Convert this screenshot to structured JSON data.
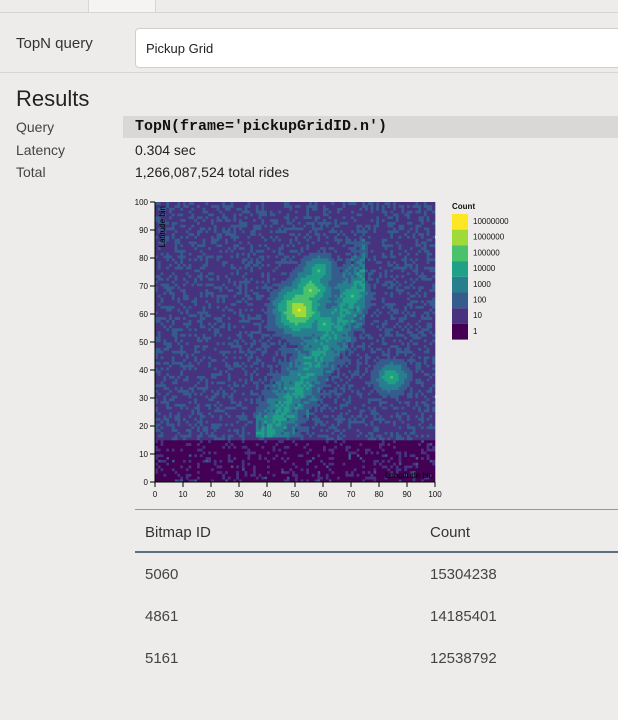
{
  "query_row": {
    "label": "TopN query",
    "value": "Pickup Grid"
  },
  "results": {
    "title": "Results",
    "query_label": "Query",
    "query_code": "TopN(frame='pickupGridID.n')",
    "latency_label": "Latency",
    "latency_value": "0.304 sec",
    "total_label": "Total",
    "total_value": "1,266,087,524 total rides"
  },
  "chart_data": {
    "type": "heatmap",
    "title": "",
    "xlabel": "Longitude bin",
    "ylabel": "Latitude bin",
    "xlim": [
      0,
      100
    ],
    "ylim": [
      0,
      100
    ],
    "x_ticks": [
      "0",
      "10",
      "20",
      "30",
      "40",
      "50",
      "60",
      "70",
      "80",
      "90",
      "100"
    ],
    "y_ticks": [
      "0",
      "10",
      "20",
      "30",
      "40",
      "50",
      "60",
      "70",
      "80",
      "90",
      "100"
    ],
    "legend_title": "Count",
    "legend_position": "right",
    "legend": [
      {
        "label": "10000000",
        "color": "#fde725"
      },
      {
        "label": "1000000",
        "color": "#a0da39"
      },
      {
        "label": "100000",
        "color": "#4ac16d"
      },
      {
        "label": "10000",
        "color": "#1fa187"
      },
      {
        "label": "1000",
        "color": "#277f8e"
      },
      {
        "label": "100",
        "color": "#365c8d"
      },
      {
        "label": "10",
        "color": "#46327e"
      },
      {
        "label": "1",
        "color": "#440154"
      }
    ],
    "hotspots": [
      {
        "x": 51,
        "y": 61,
        "count": 10000000
      },
      {
        "x": 55,
        "y": 68,
        "count": 1000000
      },
      {
        "x": 58,
        "y": 75,
        "count": 100000
      },
      {
        "x": 60,
        "y": 56,
        "count": 100000
      },
      {
        "x": 84,
        "y": 37,
        "count": 100000
      },
      {
        "x": 70,
        "y": 66,
        "count": 100000
      }
    ]
  },
  "table": {
    "columns": [
      "Bitmap ID",
      "Count"
    ],
    "rows": [
      {
        "id": "5060",
        "count": "15304238"
      },
      {
        "id": "4861",
        "count": "14185401"
      },
      {
        "id": "5161",
        "count": "12538792"
      }
    ]
  }
}
